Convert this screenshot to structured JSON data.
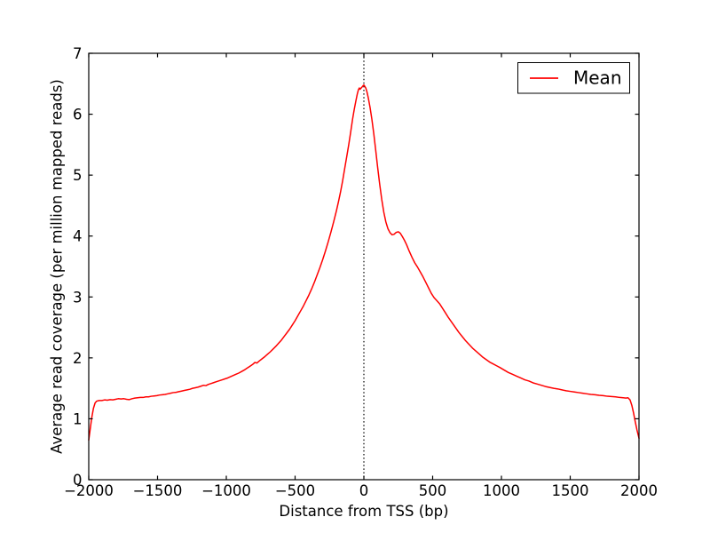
{
  "figure": {
    "background": "#ffffff",
    "frame_color": "#000000"
  },
  "chart_data": {
    "type": "line",
    "title": "",
    "xlabel": "Distance from TSS (bp)",
    "ylabel": "Average read coverage (per million mapped reads)",
    "xlim": [
      -2000,
      2000
    ],
    "ylim": [
      0,
      7
    ],
    "xticks": [
      -2000,
      -1500,
      -1000,
      -500,
      0,
      500,
      1000,
      1500,
      2000
    ],
    "xtick_labels": [
      "−2000",
      "−1500",
      "−1000",
      "−500",
      "0",
      "500",
      "1000",
      "1500",
      "2000"
    ],
    "yticks": [
      0,
      1,
      2,
      3,
      4,
      5,
      6,
      7
    ],
    "ytick_labels": [
      "0",
      "1",
      "2",
      "3",
      "4",
      "5",
      "6",
      "7"
    ],
    "grid": false,
    "vline": {
      "x": 0,
      "style": "dotted",
      "color": "#000000"
    },
    "legend": {
      "position": "upper right",
      "entries": [
        {
          "label": "Mean",
          "color": "#ff0000"
        }
      ]
    },
    "series": [
      {
        "name": "Mean",
        "color": "#ff0000",
        "points": [
          [
            -2000,
            0.65
          ],
          [
            -1990,
            0.82
          ],
          [
            -1978,
            1.02
          ],
          [
            -1966,
            1.17
          ],
          [
            -1954,
            1.26
          ],
          [
            -1942,
            1.29
          ],
          [
            -1925,
            1.3
          ],
          [
            -1905,
            1.3
          ],
          [
            -1885,
            1.31
          ],
          [
            -1865,
            1.305
          ],
          [
            -1845,
            1.315
          ],
          [
            -1825,
            1.31
          ],
          [
            -1805,
            1.32
          ],
          [
            -1785,
            1.33
          ],
          [
            -1765,
            1.325
          ],
          [
            -1745,
            1.33
          ],
          [
            -1725,
            1.32
          ],
          [
            -1705,
            1.315
          ],
          [
            -1685,
            1.33
          ],
          [
            -1665,
            1.34
          ],
          [
            -1645,
            1.345
          ],
          [
            -1625,
            1.35
          ],
          [
            -1605,
            1.35
          ],
          [
            -1585,
            1.36
          ],
          [
            -1565,
            1.36
          ],
          [
            -1545,
            1.37
          ],
          [
            -1525,
            1.375
          ],
          [
            -1505,
            1.38
          ],
          [
            -1485,
            1.39
          ],
          [
            -1465,
            1.395
          ],
          [
            -1445,
            1.4
          ],
          [
            -1425,
            1.41
          ],
          [
            -1405,
            1.42
          ],
          [
            -1385,
            1.43
          ],
          [
            -1365,
            1.435
          ],
          [
            -1345,
            1.445
          ],
          [
            -1325,
            1.455
          ],
          [
            -1305,
            1.465
          ],
          [
            -1285,
            1.475
          ],
          [
            -1265,
            1.485
          ],
          [
            -1245,
            1.5
          ],
          [
            -1225,
            1.51
          ],
          [
            -1205,
            1.52
          ],
          [
            -1185,
            1.535
          ],
          [
            -1165,
            1.55
          ],
          [
            -1148,
            1.545
          ],
          [
            -1130,
            1.565
          ],
          [
            -1110,
            1.58
          ],
          [
            -1090,
            1.595
          ],
          [
            -1070,
            1.61
          ],
          [
            -1050,
            1.625
          ],
          [
            -1030,
            1.64
          ],
          [
            -1010,
            1.655
          ],
          [
            -990,
            1.67
          ],
          [
            -970,
            1.69
          ],
          [
            -950,
            1.71
          ],
          [
            -930,
            1.73
          ],
          [
            -910,
            1.75
          ],
          [
            -890,
            1.775
          ],
          [
            -870,
            1.8
          ],
          [
            -850,
            1.83
          ],
          [
            -830,
            1.86
          ],
          [
            -810,
            1.89
          ],
          [
            -792,
            1.925
          ],
          [
            -778,
            1.915
          ],
          [
            -760,
            1.95
          ],
          [
            -740,
            1.985
          ],
          [
            -720,
            2.02
          ],
          [
            -700,
            2.06
          ],
          [
            -680,
            2.1
          ],
          [
            -660,
            2.145
          ],
          [
            -640,
            2.19
          ],
          [
            -620,
            2.24
          ],
          [
            -600,
            2.29
          ],
          [
            -580,
            2.35
          ],
          [
            -560,
            2.41
          ],
          [
            -540,
            2.47
          ],
          [
            -520,
            2.54
          ],
          [
            -500,
            2.61
          ],
          [
            -480,
            2.69
          ],
          [
            -460,
            2.77
          ],
          [
            -440,
            2.85
          ],
          [
            -420,
            2.94
          ],
          [
            -400,
            3.03
          ],
          [
            -380,
            3.13
          ],
          [
            -360,
            3.24
          ],
          [
            -340,
            3.36
          ],
          [
            -320,
            3.48
          ],
          [
            -300,
            3.61
          ],
          [
            -280,
            3.75
          ],
          [
            -260,
            3.9
          ],
          [
            -240,
            4.06
          ],
          [
            -220,
            4.23
          ],
          [
            -200,
            4.41
          ],
          [
            -185,
            4.56
          ],
          [
            -170,
            4.72
          ],
          [
            -155,
            4.9
          ],
          [
            -140,
            5.1
          ],
          [
            -125,
            5.3
          ],
          [
            -110,
            5.5
          ],
          [
            -95,
            5.72
          ],
          [
            -82,
            5.92
          ],
          [
            -70,
            6.08
          ],
          [
            -58,
            6.22
          ],
          [
            -48,
            6.33
          ],
          [
            -40,
            6.4
          ],
          [
            -33,
            6.43
          ],
          [
            -27,
            6.41
          ],
          [
            -20,
            6.43
          ],
          [
            -12,
            6.45
          ],
          [
            -5,
            6.47
          ],
          [
            0,
            6.48
          ],
          [
            6,
            6.46
          ],
          [
            14,
            6.43
          ],
          [
            22,
            6.37
          ],
          [
            32,
            6.27
          ],
          [
            45,
            6.11
          ],
          [
            58,
            5.92
          ],
          [
            72,
            5.68
          ],
          [
            86,
            5.41
          ],
          [
            100,
            5.13
          ],
          [
            115,
            4.85
          ],
          [
            130,
            4.6
          ],
          [
            145,
            4.39
          ],
          [
            160,
            4.23
          ],
          [
            175,
            4.12
          ],
          [
            190,
            4.055
          ],
          [
            205,
            4.02
          ],
          [
            220,
            4.03
          ],
          [
            235,
            4.06
          ],
          [
            250,
            4.07
          ],
          [
            265,
            4.045
          ],
          [
            280,
            3.99
          ],
          [
            295,
            3.93
          ],
          [
            310,
            3.86
          ],
          [
            330,
            3.75
          ],
          [
            350,
            3.65
          ],
          [
            370,
            3.56
          ],
          [
            390,
            3.49
          ],
          [
            410,
            3.41
          ],
          [
            430,
            3.33
          ],
          [
            450,
            3.24
          ],
          [
            470,
            3.15
          ],
          [
            490,
            3.06
          ],
          [
            510,
            2.99
          ],
          [
            530,
            2.94
          ],
          [
            550,
            2.89
          ],
          [
            570,
            2.82
          ],
          [
            590,
            2.75
          ],
          [
            615,
            2.66
          ],
          [
            640,
            2.58
          ],
          [
            665,
            2.5
          ],
          [
            690,
            2.42
          ],
          [
            715,
            2.35
          ],
          [
            740,
            2.28
          ],
          [
            765,
            2.22
          ],
          [
            790,
            2.16
          ],
          [
            815,
            2.11
          ],
          [
            840,
            2.06
          ],
          [
            865,
            2.01
          ],
          [
            890,
            1.97
          ],
          [
            915,
            1.93
          ],
          [
            940,
            1.9
          ],
          [
            965,
            1.87
          ],
          [
            990,
            1.84
          ],
          [
            1020,
            1.8
          ],
          [
            1050,
            1.76
          ],
          [
            1080,
            1.73
          ],
          [
            1110,
            1.7
          ],
          [
            1140,
            1.67
          ],
          [
            1170,
            1.64
          ],
          [
            1200,
            1.62
          ],
          [
            1230,
            1.59
          ],
          [
            1260,
            1.57
          ],
          [
            1290,
            1.55
          ],
          [
            1320,
            1.53
          ],
          [
            1350,
            1.515
          ],
          [
            1380,
            1.5
          ],
          [
            1410,
            1.49
          ],
          [
            1440,
            1.475
          ],
          [
            1470,
            1.46
          ],
          [
            1500,
            1.45
          ],
          [
            1530,
            1.44
          ],
          [
            1560,
            1.43
          ],
          [
            1590,
            1.42
          ],
          [
            1620,
            1.41
          ],
          [
            1650,
            1.4
          ],
          [
            1680,
            1.395
          ],
          [
            1710,
            1.385
          ],
          [
            1740,
            1.38
          ],
          [
            1770,
            1.37
          ],
          [
            1800,
            1.365
          ],
          [
            1830,
            1.36
          ],
          [
            1860,
            1.35
          ],
          [
            1885,
            1.345
          ],
          [
            1905,
            1.34
          ],
          [
            1920,
            1.345
          ],
          [
            1935,
            1.31
          ],
          [
            1948,
            1.22
          ],
          [
            1960,
            1.1
          ],
          [
            1972,
            0.96
          ],
          [
            1985,
            0.82
          ],
          [
            2000,
            0.68
          ]
        ]
      }
    ]
  }
}
